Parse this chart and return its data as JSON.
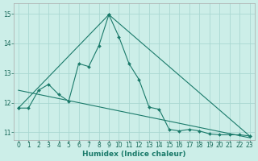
{
  "xlabel": "Humidex (Indice chaleur)",
  "bg_color": "#cceee8",
  "grid_color": "#aad8d2",
  "line_color": "#1a7a6a",
  "xlim": [
    -0.5,
    23.5
  ],
  "ylim": [
    10.75,
    15.35
  ],
  "yticks": [
    11,
    12,
    13,
    14,
    15
  ],
  "xticks": [
    0,
    1,
    2,
    3,
    4,
    5,
    6,
    7,
    8,
    9,
    10,
    11,
    12,
    13,
    14,
    15,
    16,
    17,
    18,
    19,
    20,
    21,
    22,
    23
  ],
  "series1_x": [
    0,
    1,
    2,
    3,
    4,
    5,
    6,
    7,
    8,
    9,
    10,
    11,
    12,
    13,
    14,
    15,
    16,
    17,
    18,
    19,
    20,
    21,
    22,
    23
  ],
  "series1_y": [
    11.82,
    11.82,
    12.42,
    12.62,
    12.28,
    12.05,
    13.32,
    13.22,
    13.92,
    14.97,
    14.22,
    13.32,
    12.78,
    11.85,
    11.78,
    11.1,
    11.05,
    11.1,
    11.05,
    10.95,
    10.92,
    10.92,
    10.92,
    10.88
  ],
  "series2_x": [
    0,
    9,
    23
  ],
  "series2_y": [
    11.82,
    14.97,
    10.88
  ],
  "series3_x": [
    0,
    23
  ],
  "series3_y": [
    12.42,
    10.82
  ]
}
